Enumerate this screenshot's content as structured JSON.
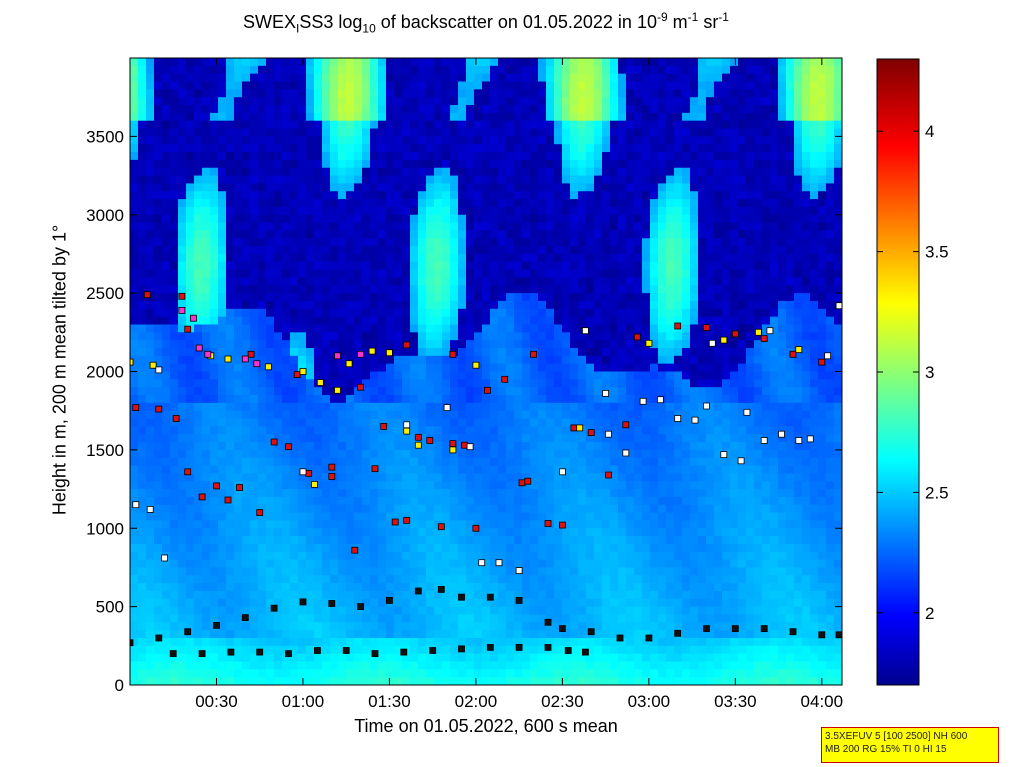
{
  "title": {
    "prefix": "SWEX",
    "sub1": "I",
    "mid": "SS3 log",
    "sub2": "10",
    "mid2": " of backscatter on 01.05.2022 in 10",
    "sup1": "-9",
    "mid3": " m",
    "sup2": "-1",
    "mid4": " sr",
    "sup3": "-1"
  },
  "info_box": {
    "line1": "3.5XEFUV 5 [100 2500] NH 600",
    "line2": "MB 200 RG 15% TI 0 HI 15"
  },
  "colors": {
    "marker_black": "#111111",
    "marker_red": "#dd1111",
    "marker_yellow": "#ffee00",
    "marker_magenta": "#ff33cc",
    "marker_white": "#ffffff"
  },
  "chart_data": {
    "type": "heatmap",
    "title": "SWEX_ISS3 log10 of backscatter on 01.05.2022 in 10^-9 m^-1 sr^-1",
    "xlabel": "Time on 01.05.2022, 600 s mean",
    "ylabel": "Height in m, 200 m mean tilted by 1°",
    "x_unit": "minutes after 00:00",
    "xlim": [
      0,
      247
    ],
    "ylim": [
      0,
      4000
    ],
    "x_tick_values": [
      30,
      60,
      90,
      120,
      150,
      180,
      210,
      240
    ],
    "x_tick_labels": [
      "00:30",
      "01:00",
      "01:30",
      "02:00",
      "02:30",
      "03:00",
      "03:30",
      "04:00"
    ],
    "y_ticks": [
      0,
      500,
      1000,
      1500,
      2000,
      2500,
      3000,
      3500
    ],
    "colorbar": {
      "range": [
        1.7,
        4.3
      ],
      "ticks": [
        2,
        2.5,
        3,
        3.5,
        4
      ],
      "tick_labels": [
        "2",
        "2.5",
        "3",
        "3.5",
        "4"
      ],
      "colormap": "jet"
    },
    "field_description": "backscatter ~2.6-2.8 near ground, ~2.3-2.5 from 300-1800 m, ~2.2 up to 2000-2400 m, mostly <=1.9 above with patches of 2.4-2.9",
    "markers": {
      "lower_layer_black": [
        [
          0,
          270
        ],
        [
          10,
          300
        ],
        [
          20,
          340
        ],
        [
          30,
          380
        ],
        [
          40,
          430
        ],
        [
          50,
          490
        ],
        [
          60,
          530
        ],
        [
          70,
          520
        ],
        [
          80,
          500
        ],
        [
          90,
          540
        ],
        [
          100,
          600
        ],
        [
          108,
          610
        ],
        [
          115,
          560
        ],
        [
          125,
          560
        ],
        [
          135,
          540
        ],
        [
          145,
          400
        ],
        [
          150,
          360
        ],
        [
          160,
          340
        ],
        [
          170,
          300
        ],
        [
          180,
          300
        ],
        [
          190,
          330
        ],
        [
          200,
          360
        ],
        [
          210,
          360
        ],
        [
          220,
          360
        ],
        [
          230,
          340
        ],
        [
          240,
          320
        ],
        [
          246,
          320
        ]
      ],
      "ground_layer_black": [
        [
          15,
          200
        ],
        [
          25,
          200
        ],
        [
          35,
          210
        ],
        [
          45,
          210
        ],
        [
          55,
          200
        ],
        [
          65,
          220
        ],
        [
          75,
          220
        ],
        [
          85,
          200
        ],
        [
          95,
          210
        ],
        [
          105,
          220
        ],
        [
          115,
          230
        ],
        [
          125,
          240
        ],
        [
          135,
          240
        ],
        [
          145,
          240
        ],
        [
          152,
          220
        ],
        [
          158,
          210
        ]
      ],
      "red": [
        [
          2,
          1770
        ],
        [
          10,
          1760
        ],
        [
          16,
          1700
        ],
        [
          20,
          1360
        ],
        [
          25,
          1200
        ],
        [
          30,
          1270
        ],
        [
          38,
          1260
        ],
        [
          45,
          1100
        ],
        [
          50,
          1550
        ],
        [
          55,
          1520
        ],
        [
          62,
          1350
        ],
        [
          70,
          1330
        ],
        [
          78,
          860
        ],
        [
          80,
          1900
        ],
        [
          85,
          1380
        ],
        [
          88,
          1650
        ],
        [
          92,
          1040
        ],
        [
          96,
          1050
        ],
        [
          100,
          1580
        ],
        [
          104,
          1560
        ],
        [
          108,
          1010
        ],
        [
          112,
          1540
        ],
        [
          116,
          1530
        ],
        [
          120,
          1000
        ],
        [
          124,
          1880
        ],
        [
          130,
          1950
        ],
        [
          136,
          1290
        ],
        [
          138,
          1300
        ],
        [
          145,
          1030
        ],
        [
          150,
          1020
        ],
        [
          154,
          1640
        ],
        [
          160,
          1610
        ],
        [
          166,
          1340
        ],
        [
          172,
          1660
        ],
        [
          176,
          2220
        ],
        [
          190,
          2290
        ],
        [
          200,
          2280
        ],
        [
          210,
          2240
        ],
        [
          220,
          2210
        ],
        [
          230,
          2110
        ],
        [
          240,
          2060
        ],
        [
          6,
          2490
        ],
        [
          18,
          2480
        ],
        [
          42,
          2110
        ],
        [
          58,
          1980
        ],
        [
          96,
          2170
        ],
        [
          112,
          2110
        ],
        [
          140,
          2110
        ],
        [
          20,
          2270
        ],
        [
          34,
          1180
        ],
        [
          70,
          1390
        ]
      ],
      "yellow": [
        [
          0,
          2060
        ],
        [
          8,
          2040
        ],
        [
          28,
          2100
        ],
        [
          34,
          2080
        ],
        [
          48,
          2030
        ],
        [
          60,
          2000
        ],
        [
          66,
          1930
        ],
        [
          72,
          1880
        ],
        [
          76,
          2050
        ],
        [
          84,
          2130
        ],
        [
          90,
          2120
        ],
        [
          96,
          1620
        ],
        [
          100,
          1530
        ],
        [
          112,
          1500
        ],
        [
          120,
          2040
        ],
        [
          180,
          2180
        ],
        [
          206,
          2200
        ],
        [
          218,
          2250
        ],
        [
          232,
          2140
        ],
        [
          156,
          1640
        ],
        [
          64,
          1280
        ]
      ],
      "magenta": [
        [
          24,
          2150
        ],
        [
          27,
          2110
        ],
        [
          40,
          2080
        ],
        [
          44,
          2050
        ],
        [
          72,
          2100
        ],
        [
          80,
          2110
        ],
        [
          18,
          2390
        ],
        [
          22,
          2340
        ]
      ],
      "white": [
        [
          2,
          1150
        ],
        [
          7,
          1120
        ],
        [
          12,
          810
        ],
        [
          10,
          2010
        ],
        [
          60,
          1360
        ],
        [
          96,
          1660
        ],
        [
          110,
          1770
        ],
        [
          118,
          1520
        ],
        [
          122,
          780
        ],
        [
          128,
          780
        ],
        [
          135,
          730
        ],
        [
          150,
          1360
        ],
        [
          158,
          2260
        ],
        [
          165,
          1860
        ],
        [
          172,
          1480
        ],
        [
          178,
          1810
        ],
        [
          184,
          1820
        ],
        [
          190,
          1700
        ],
        [
          196,
          1690
        ],
        [
          206,
          1470
        ],
        [
          212,
          1430
        ],
        [
          220,
          1560
        ],
        [
          226,
          1600
        ],
        [
          232,
          1560
        ],
        [
          236,
          1570
        ],
        [
          242,
          2100
        ],
        [
          246,
          2420
        ],
        [
          166,
          1600
        ],
        [
          202,
          2180
        ],
        [
          200,
          1780
        ],
        [
          214,
          1740
        ],
        [
          222,
          2260
        ]
      ]
    }
  }
}
